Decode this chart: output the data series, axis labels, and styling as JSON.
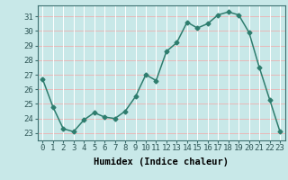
{
  "x": [
    0,
    1,
    2,
    3,
    4,
    5,
    6,
    7,
    8,
    9,
    10,
    11,
    12,
    13,
    14,
    15,
    16,
    17,
    18,
    19,
    20,
    21,
    22,
    23
  ],
  "y": [
    26.7,
    24.8,
    23.3,
    23.1,
    23.9,
    24.4,
    24.1,
    24.0,
    24.5,
    25.5,
    27.0,
    26.6,
    28.6,
    29.2,
    30.6,
    30.2,
    30.5,
    31.1,
    31.3,
    31.1,
    29.9,
    27.5,
    25.3,
    23.1
  ],
  "line_color": "#2e7d6e",
  "marker": "D",
  "marker_size": 2.5,
  "bg_color": "#c8e8e8",
  "grid_color_h": "#e8b8b8",
  "grid_color_v": "#ffffff",
  "xlabel": "Humidex (Indice chaleur)",
  "xlim": [
    -0.5,
    23.5
  ],
  "ylim": [
    22.5,
    31.75
  ],
  "yticks": [
    23,
    24,
    25,
    26,
    27,
    28,
    29,
    30,
    31
  ],
  "xticks": [
    0,
    1,
    2,
    3,
    4,
    5,
    6,
    7,
    8,
    9,
    10,
    11,
    12,
    13,
    14,
    15,
    16,
    17,
    18,
    19,
    20,
    21,
    22,
    23
  ],
  "xlabel_fontsize": 7.5,
  "tick_fontsize": 6.5,
  "linewidth": 1.1
}
